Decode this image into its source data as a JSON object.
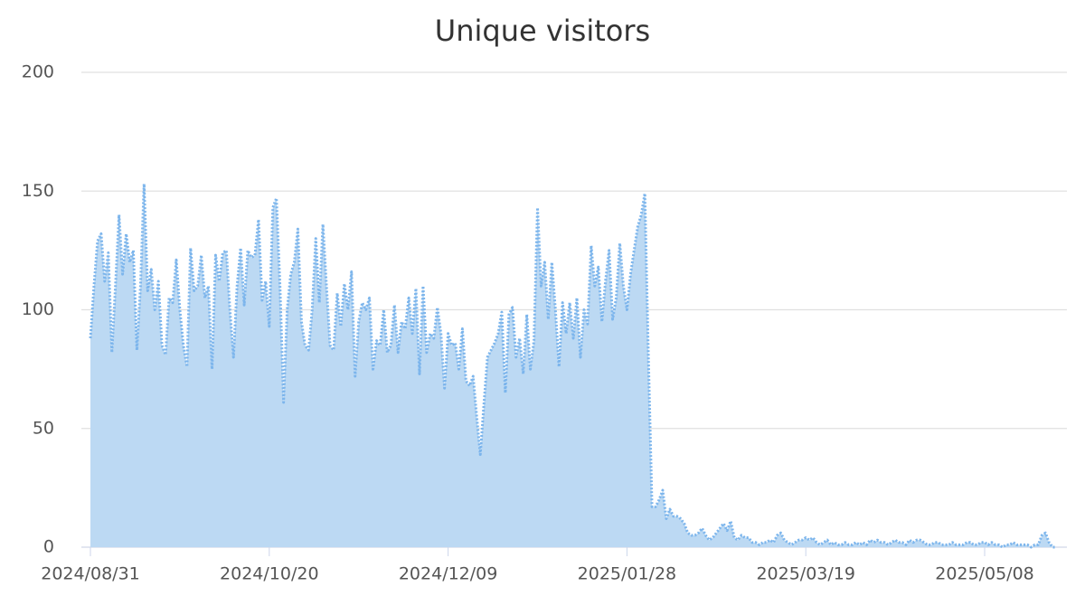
{
  "chart_data": {
    "type": "area",
    "title": "Unique visitors",
    "x": [
      "2024/08/31",
      "2024/09/01",
      "2024/09/02",
      "2024/09/03",
      "2024/09/04",
      "2024/09/05",
      "2024/09/06",
      "2024/09/07",
      "2024/09/08",
      "2024/09/09",
      "2024/09/10",
      "2024/09/11",
      "2024/09/12",
      "2024/09/13",
      "2024/09/14",
      "2024/09/15",
      "2024/09/16",
      "2024/09/17",
      "2024/09/18",
      "2024/09/19",
      "2024/09/20",
      "2024/09/21",
      "2024/09/22",
      "2024/09/23",
      "2024/09/24",
      "2024/09/25",
      "2024/09/26",
      "2024/09/27",
      "2024/09/28",
      "2024/09/29",
      "2024/09/30",
      "2024/10/01",
      "2024/10/02",
      "2024/10/03",
      "2024/10/04",
      "2024/10/05",
      "2024/10/06",
      "2024/10/07",
      "2024/10/08",
      "2024/10/09",
      "2024/10/10",
      "2024/10/11",
      "2024/10/12",
      "2024/10/13",
      "2024/10/14",
      "2024/10/15",
      "2024/10/16",
      "2024/10/17",
      "2024/10/18",
      "2024/10/19",
      "2024/10/20",
      "2024/10/21",
      "2024/10/22",
      "2024/10/23",
      "2024/10/24",
      "2024/10/25",
      "2024/10/26",
      "2024/10/27",
      "2024/10/28",
      "2024/10/29",
      "2024/10/30",
      "2024/10/31",
      "2024/11/01",
      "2024/11/02",
      "2024/11/03",
      "2024/11/04",
      "2024/11/05",
      "2024/11/06",
      "2024/11/07",
      "2024/11/08",
      "2024/11/09",
      "2024/11/10",
      "2024/11/11",
      "2024/11/12",
      "2024/11/13",
      "2024/11/14",
      "2024/11/15",
      "2024/11/16",
      "2024/11/17",
      "2024/11/18",
      "2024/11/19",
      "2024/11/20",
      "2024/11/21",
      "2024/11/22",
      "2024/11/23",
      "2024/11/24",
      "2024/11/25",
      "2024/11/26",
      "2024/11/27",
      "2024/11/28",
      "2024/11/29",
      "2024/11/30",
      "2024/12/01",
      "2024/12/02",
      "2024/12/03",
      "2024/12/04",
      "2024/12/05",
      "2024/12/06",
      "2024/12/07",
      "2024/12/08",
      "2024/12/09",
      "2024/12/10",
      "2024/12/11",
      "2024/12/12",
      "2024/12/13",
      "2024/12/14",
      "2024/12/15",
      "2024/12/16",
      "2024/12/17",
      "2024/12/18",
      "2024/12/19",
      "2024/12/20",
      "2024/12/21",
      "2024/12/22",
      "2024/12/23",
      "2024/12/24",
      "2024/12/25",
      "2024/12/26",
      "2024/12/27",
      "2024/12/28",
      "2024/12/29",
      "2024/12/30",
      "2024/12/31",
      "2025/01/01",
      "2025/01/02",
      "2025/01/03",
      "2025/01/04",
      "2025/01/05",
      "2025/01/06",
      "2025/01/07",
      "2025/01/08",
      "2025/01/09",
      "2025/01/10",
      "2025/01/11",
      "2025/01/12",
      "2025/01/13",
      "2025/01/14",
      "2025/01/15",
      "2025/01/16",
      "2025/01/17",
      "2025/01/18",
      "2025/01/19",
      "2025/01/20",
      "2025/01/21",
      "2025/01/22",
      "2025/01/23",
      "2025/01/24",
      "2025/01/25",
      "2025/01/26",
      "2025/01/27",
      "2025/01/28",
      "2025/01/29",
      "2025/01/30",
      "2025/01/31",
      "2025/02/01",
      "2025/02/02",
      "2025/02/03",
      "2025/02/04",
      "2025/02/05",
      "2025/02/06",
      "2025/02/07",
      "2025/02/08",
      "2025/02/09",
      "2025/02/10",
      "2025/02/11",
      "2025/02/12",
      "2025/02/13",
      "2025/02/14",
      "2025/02/15",
      "2025/02/16",
      "2025/02/17",
      "2025/02/18",
      "2025/02/19",
      "2025/02/20",
      "2025/02/21",
      "2025/02/22",
      "2025/02/23",
      "2025/02/24",
      "2025/02/25",
      "2025/02/26",
      "2025/02/27",
      "2025/02/28",
      "2025/03/01",
      "2025/03/02",
      "2025/03/03",
      "2025/03/04",
      "2025/03/05",
      "2025/03/06",
      "2025/03/07",
      "2025/03/08",
      "2025/03/09",
      "2025/03/10",
      "2025/03/11",
      "2025/03/12",
      "2025/03/13",
      "2025/03/14",
      "2025/03/15",
      "2025/03/16",
      "2025/03/17",
      "2025/03/18",
      "2025/03/19",
      "2025/03/20",
      "2025/03/21",
      "2025/03/22",
      "2025/03/23",
      "2025/03/24",
      "2025/03/25",
      "2025/03/26",
      "2025/03/27",
      "2025/03/28",
      "2025/03/29",
      "2025/03/30",
      "2025/03/31",
      "2025/04/01",
      "2025/04/02",
      "2025/04/03",
      "2025/04/04",
      "2025/04/05",
      "2025/04/06",
      "2025/04/07",
      "2025/04/08",
      "2025/04/09",
      "2025/04/10",
      "2025/04/11",
      "2025/04/12",
      "2025/04/13",
      "2025/04/14",
      "2025/04/15",
      "2025/04/16",
      "2025/04/17",
      "2025/04/18",
      "2025/04/19",
      "2025/04/20",
      "2025/04/21",
      "2025/04/22",
      "2025/04/23",
      "2025/04/24",
      "2025/04/25",
      "2025/04/26",
      "2025/04/27",
      "2025/04/28",
      "2025/04/29",
      "2025/04/30",
      "2025/05/01",
      "2025/05/02",
      "2025/05/03",
      "2025/05/04",
      "2025/05/05",
      "2025/05/06",
      "2025/05/07",
      "2025/05/08",
      "2025/05/09",
      "2025/05/10",
      "2025/05/11",
      "2025/05/12",
      "2025/05/13",
      "2025/05/14",
      "2025/05/15",
      "2025/05/16",
      "2025/05/17",
      "2025/05/18",
      "2025/05/19",
      "2025/05/20",
      "2025/05/21",
      "2025/05/22",
      "2025/05/23",
      "2025/05/24",
      "2025/05/25",
      "2025/05/26",
      "2025/05/27",
      "2025/05/28"
    ],
    "values": [
      88,
      110,
      129,
      132,
      112,
      124,
      82,
      110,
      140,
      115,
      132,
      120,
      125,
      83,
      110,
      153,
      108,
      117,
      100,
      112,
      85,
      81,
      105,
      103,
      121,
      100,
      85,
      76,
      126,
      108,
      110,
      123,
      105,
      110,
      75,
      123,
      112,
      124,
      125,
      100,
      80,
      110,
      126,
      102,
      125,
      122,
      123,
      138,
      104,
      112,
      93,
      143,
      147,
      110,
      61,
      100,
      115,
      120,
      134,
      95,
      85,
      83,
      100,
      130,
      103,
      136,
      110,
      85,
      83,
      107,
      93,
      111,
      100,
      116,
      72,
      95,
      103,
      100,
      105,
      75,
      87,
      85,
      100,
      82,
      85,
      102,
      82,
      95,
      92,
      105,
      90,
      109,
      73,
      110,
      82,
      90,
      88,
      101,
      90,
      67,
      90,
      85,
      86,
      75,
      92,
      70,
      68,
      72,
      55,
      39,
      60,
      80,
      83,
      86,
      90,
      99,
      65,
      98,
      101,
      80,
      88,
      73,
      98,
      75,
      87,
      143,
      110,
      120,
      96,
      120,
      100,
      76,
      103,
      90,
      103,
      88,
      105,
      80,
      100,
      94,
      127,
      110,
      118,
      95,
      112,
      125,
      96,
      105,
      128,
      110,
      100,
      115,
      125,
      135,
      140,
      149,
      80,
      17,
      17,
      20,
      24,
      12,
      16,
      13,
      13,
      12,
      10,
      6,
      5,
      5,
      6,
      8,
      5,
      3,
      4,
      6,
      8,
      10,
      7,
      11,
      4,
      3,
      5,
      4,
      4,
      2,
      2,
      1,
      2,
      2,
      3,
      2,
      5,
      6,
      3,
      2,
      1,
      2,
      3,
      3,
      4,
      3,
      4,
      2,
      1,
      2,
      3,
      1,
      2,
      1,
      1,
      2,
      1,
      1,
      2,
      1,
      2,
      1,
      3,
      2,
      3,
      2,
      2,
      1,
      2,
      3,
      2,
      2,
      1,
      3,
      2,
      3,
      3,
      2,
      1,
      1,
      2,
      2,
      1,
      1,
      1,
      2,
      1,
      1,
      1,
      2,
      2,
      1,
      1,
      2,
      2,
      1,
      2,
      1,
      1,
      0,
      1,
      1,
      2,
      1,
      1,
      1,
      1,
      0,
      1,
      1,
      5,
      6,
      2,
      0,
      0
    ],
    "color": "#7cb5ec",
    "fill": "#bcd9f3",
    "xlim": [
      "2024/08/31",
      "2025/05/31"
    ],
    "xticks": [
      "2024/08/31",
      "2024/10/20",
      "2024/12/09",
      "2025/01/28",
      "2025/03/19",
      "2025/05/08"
    ],
    "ylim": [
      0,
      200
    ],
    "yticks": [
      0,
      50,
      100,
      150,
      200
    ],
    "grid": true
  }
}
